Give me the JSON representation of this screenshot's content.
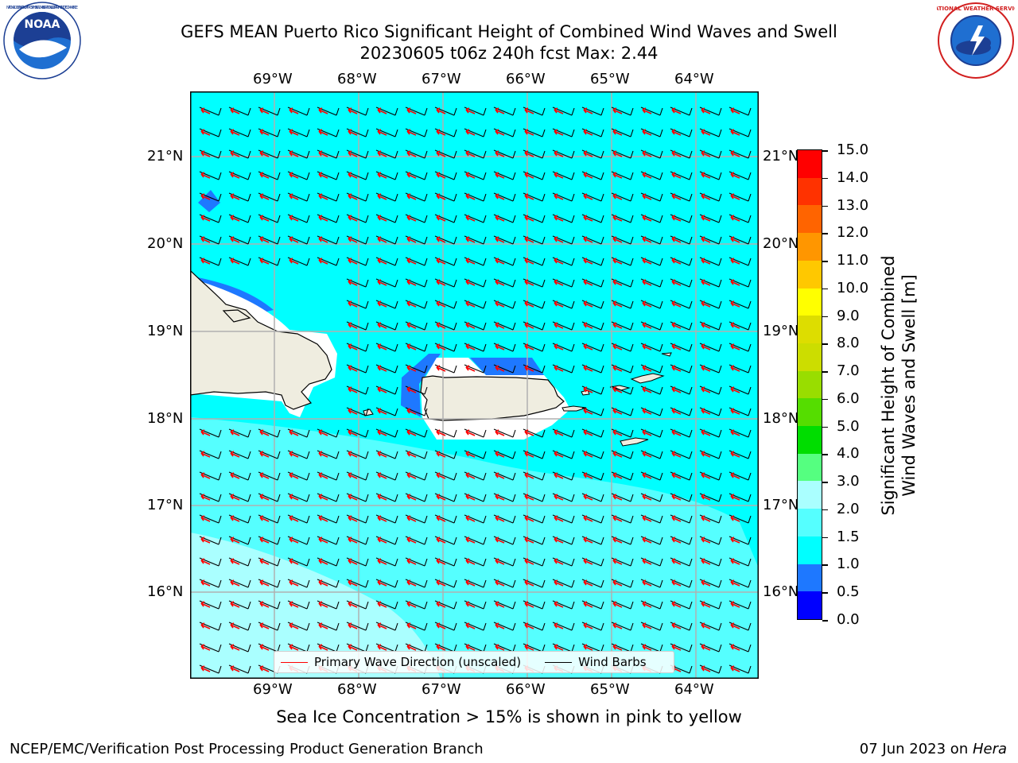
{
  "header": {
    "title_line1": "GEFS MEAN Puerto Rico Significant Height of Combined Wind Waves and Swell",
    "title_line2": "20230605 t06z 240h fcst   Max: 2.44"
  },
  "logos": {
    "left": "NOAA",
    "left_ring_text": "NATIONAL OCEANIC AND ATMOSPHERIC ADMINISTRATION · U.S. DEPARTMENT OF COMMERCE",
    "right_ring_text": "NATIONAL WEATHER SERVICE"
  },
  "map": {
    "lon_labels": [
      "69°W",
      "68°W",
      "67°W",
      "66°W",
      "65°W",
      "64°W"
    ],
    "lat_labels": [
      "21°N",
      "20°N",
      "19°N",
      "18°N",
      "17°N",
      "16°N"
    ],
    "ocean_color": "#00ffff",
    "land_color": "#efede0"
  },
  "legend": {
    "wave_direction": "Primary Wave Direction (unscaled)",
    "wind_barbs": "Wind Barbs",
    "wave_color": "#ff0000",
    "barb_color": "#000000"
  },
  "colorbar": {
    "label_line1": "Significant Height of Combined",
    "label_line2": "Wind Waves and Swell [m]",
    "ticks": [
      "0.0",
      "0.5",
      "1.0",
      "1.5",
      "2.0",
      "3.0",
      "4.0",
      "5.0",
      "6.0",
      "7.0",
      "8.0",
      "9.0",
      "10.0",
      "11.0",
      "12.0",
      "13.0",
      "14.0",
      "15.0"
    ],
    "colors": [
      "#0000ff",
      "#1e78ff",
      "#00ffff",
      "#55ffff",
      "#aaffff",
      "#55ff80",
      "#00dd00",
      "#55dd00",
      "#99dd00",
      "#ccdd00",
      "#dddd00",
      "#ffff00",
      "#ffc800",
      "#ff9600",
      "#ff6400",
      "#ff3200",
      "#ff0000"
    ]
  },
  "notes": {
    "sea_ice": "Sea Ice Concentration > 15% is shown in pink to yellow"
  },
  "footer": {
    "left": "NCEP/EMC/Verification Post Processing Product Generation Branch",
    "right_prefix": "07 Jun 2023 on ",
    "right_host": "Hera"
  }
}
